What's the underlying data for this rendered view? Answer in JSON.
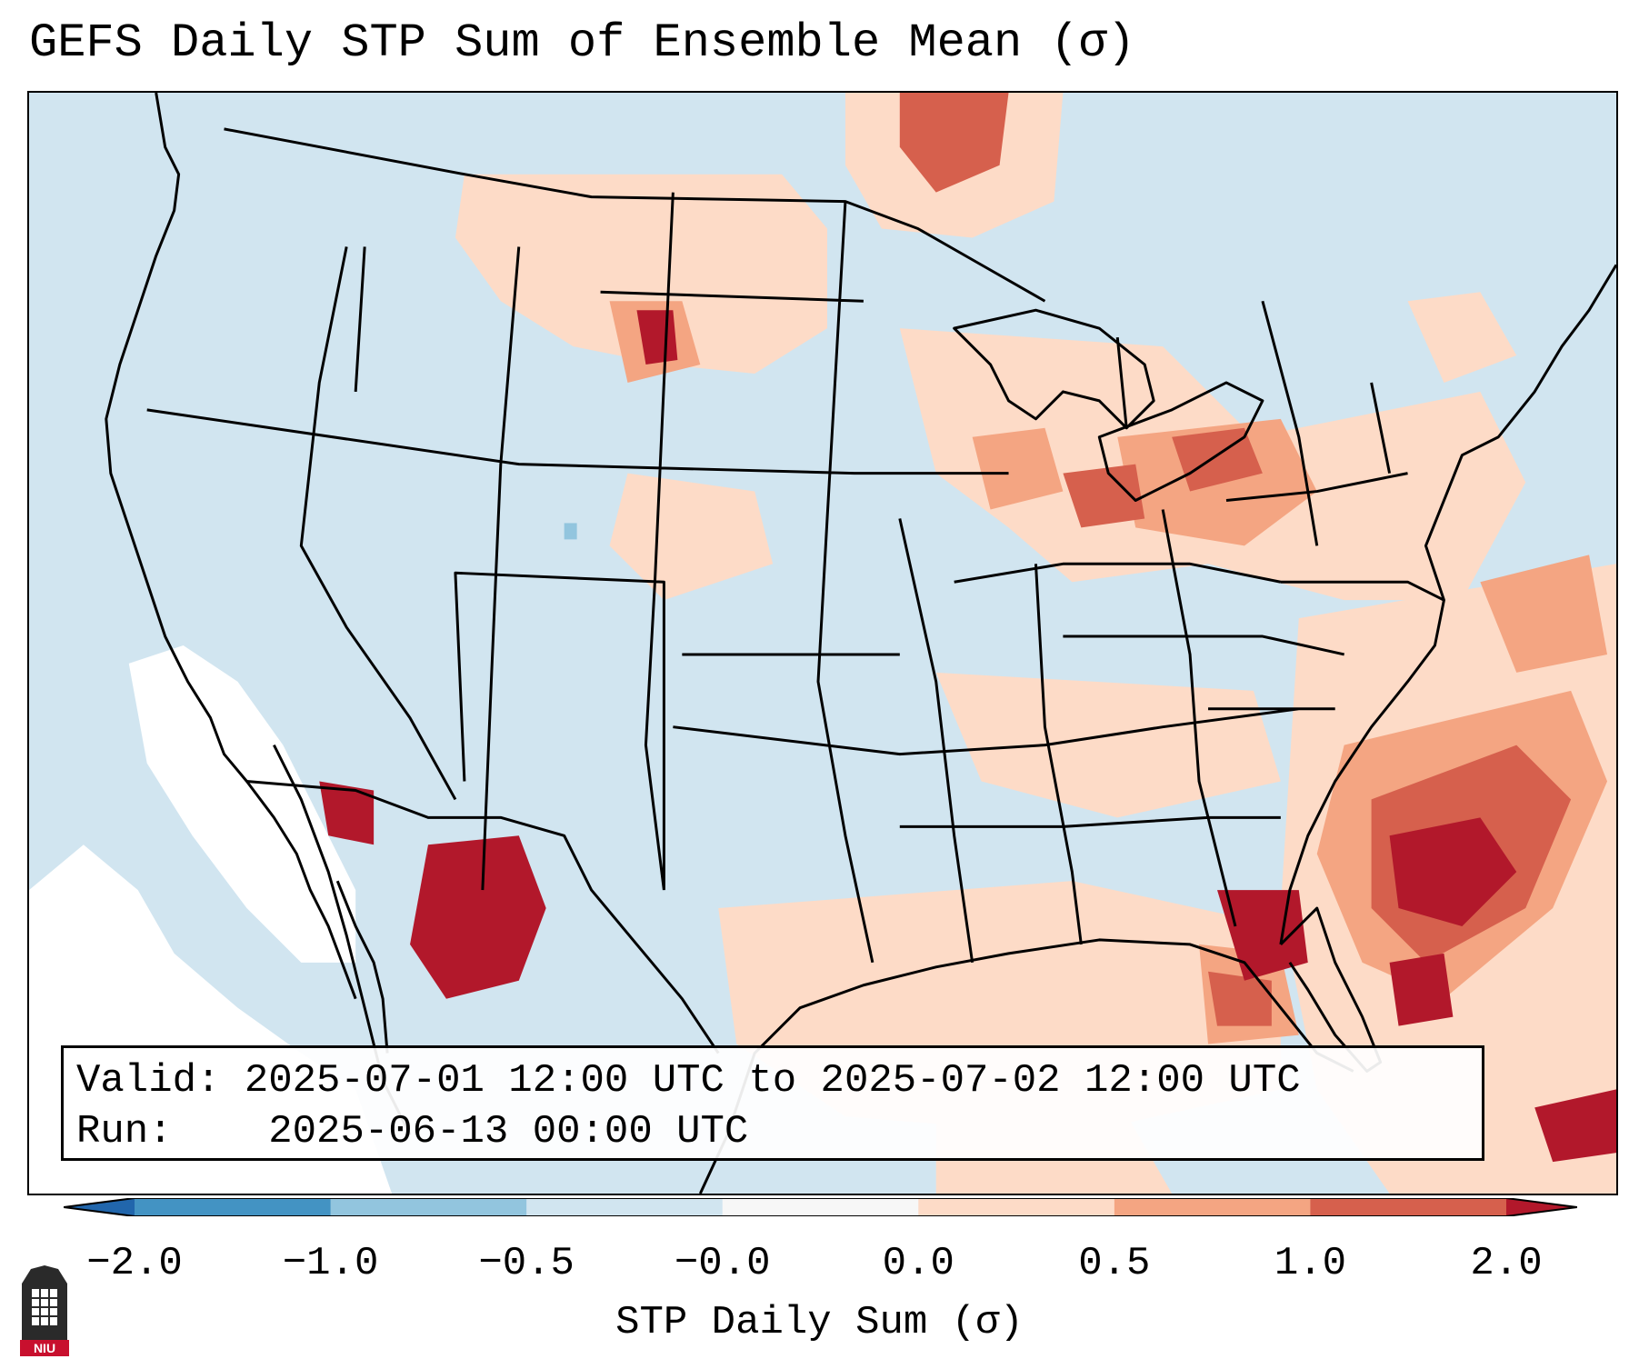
{
  "title": "GEFS Daily STP Sum of Ensemble Mean (σ)",
  "info": {
    "valid_label": "Valid:",
    "valid_value": "2025-07-01 12:00 UTC to 2025-07-02 12:00 UTC",
    "run_label": "Run:",
    "run_value": "2025-06-13 00:00 UTC"
  },
  "colorbar": {
    "label": "STP Daily Sum (σ)",
    "ticks": [
      "−2.0",
      "−1.0",
      "−0.5",
      "−0.0",
      "0.0",
      "0.5",
      "1.0",
      "2.0"
    ],
    "bins": [
      {
        "range": "<-2.0",
        "color": "#2166ac"
      },
      {
        "range": "-2.0 to -1.0",
        "color": "#4393c3"
      },
      {
        "range": "-1.0 to -0.5",
        "color": "#92c5de"
      },
      {
        "range": "-0.5 to -0.0",
        "color": "#d1e5f0"
      },
      {
        "range": "-0.0 to 0.0",
        "color": "#f7f7f7"
      },
      {
        "range": "0.0 to 0.5",
        "color": "#fddbc7"
      },
      {
        "range": "0.5 to 1.0",
        "color": "#f4a582"
      },
      {
        "range": "1.0 to 2.0",
        "color": "#d6604d"
      },
      {
        "range": ">2.0",
        "color": "#b2182b"
      }
    ]
  },
  "logo": {
    "text": "NIU",
    "description": "Northern Illinois University logo"
  },
  "map": {
    "region": "Contiguous United States",
    "background_color": "#d1e5f0",
    "anomaly_areas": [
      {
        "region": "Southeast US coast / Atlantic off Carolinas",
        "level": ">2.0"
      },
      {
        "region": "Florida Gulf coast",
        "level": ">2.0"
      },
      {
        "region": "Northwestern Mexico (Sonora/Chihuahua)",
        "level": ">2.0"
      },
      {
        "region": "Northeast Wyoming / SE Montana",
        "level": ">2.0"
      },
      {
        "region": "Southern Saskatchewan / Manitoba",
        "level": "1.0 to 2.0"
      },
      {
        "region": "Great Lakes / Pennsylvania / New York",
        "level": "0.5 to 1.0"
      },
      {
        "region": "Gulf of Mexico / Texas coast",
        "level": "0.0 to 0.5"
      },
      {
        "region": "Pacific offshore California / Baja",
        "level": "-0.0 to 0.0"
      }
    ]
  }
}
